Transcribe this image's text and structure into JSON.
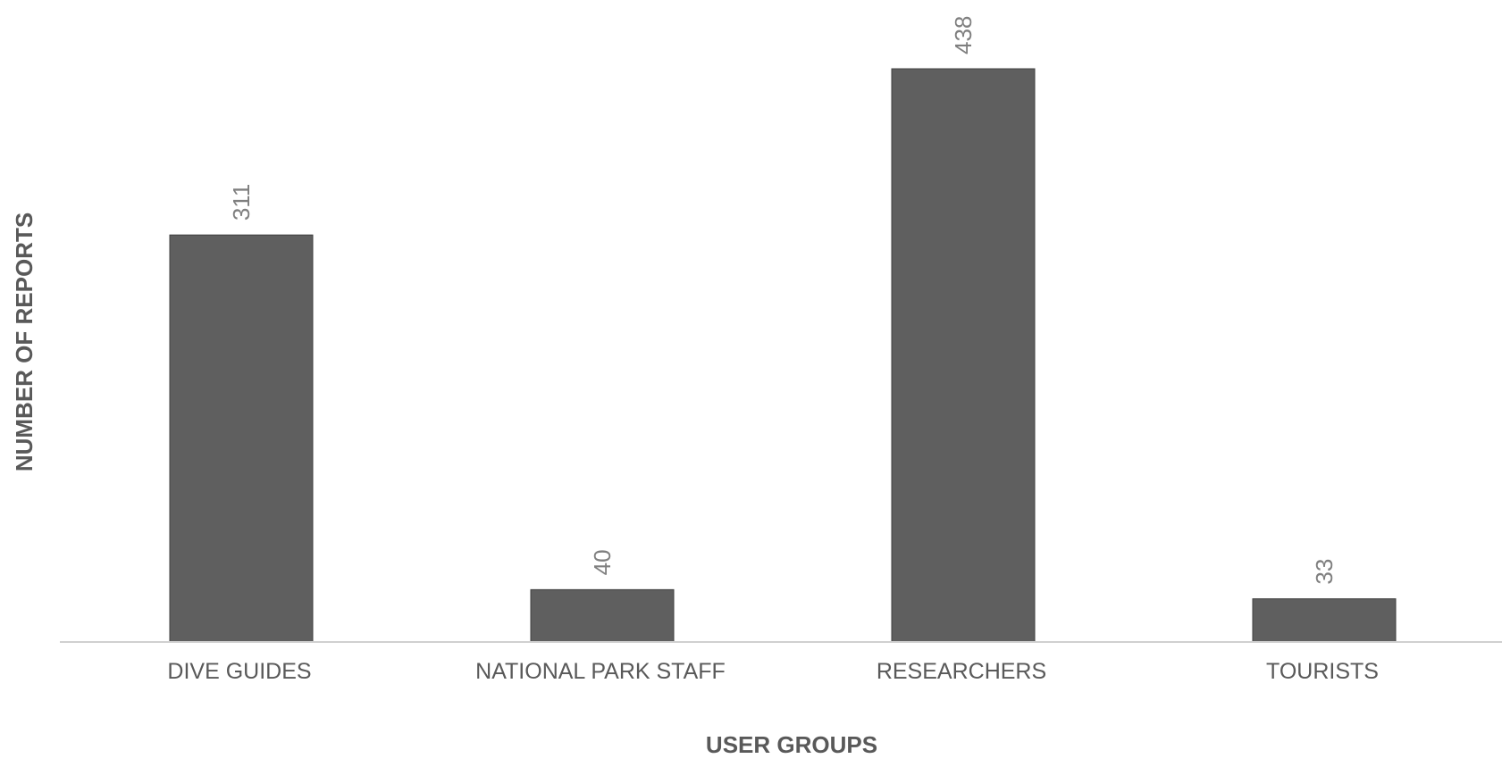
{
  "chart_data": {
    "type": "bar",
    "categories": [
      "DIVE GUIDES",
      "NATIONAL PARK STAFF",
      "RESEARCHERS",
      "TOURISTS"
    ],
    "values": [
      311,
      40,
      438,
      33
    ],
    "title": "",
    "xlabel": "USER GROUPS",
    "ylabel": "NUMBER OF REPORTS",
    "ylim": [
      0,
      438
    ],
    "grid": false,
    "legend": "none",
    "data_labels": true,
    "colors": {
      "bar": "#5f5f5f",
      "bar_stroke": "#404040",
      "axis_line": "#d0d0d0",
      "data_label": "#7f7f7f",
      "tick_label": "#595959",
      "axis_title": "#595959"
    }
  }
}
